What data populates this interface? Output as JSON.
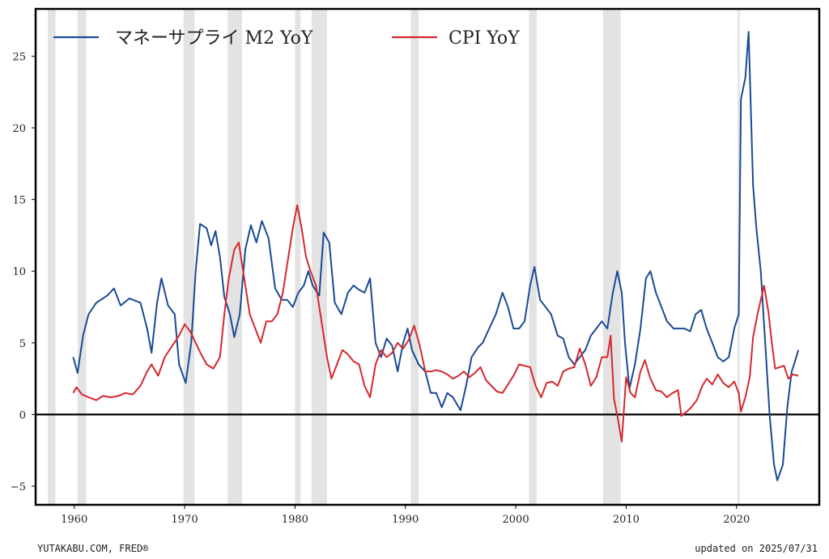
{
  "footer": {
    "source": "YUTAKABU.COM, FRED®",
    "updated": "updated on 2025/07/31"
  },
  "chart_data": {
    "type": "line",
    "title": "",
    "xlabel": "",
    "ylabel": "",
    "xlim": [
      1956.5,
      2027.5
    ],
    "ylim": [
      -6.3,
      28.3
    ],
    "x_ticks": [
      1960,
      1970,
      1980,
      1990,
      2000,
      2010,
      2020
    ],
    "y_ticks": [
      -5,
      0,
      5,
      10,
      15,
      20,
      25
    ],
    "y_tick_labels": [
      "−5",
      "0",
      "5",
      "10",
      "15",
      "20",
      "25"
    ],
    "grid": false,
    "zero_line": true,
    "legend_position": "top-left",
    "recessions": [
      [
        1957.6,
        1958.3
      ],
      [
        1960.3,
        1961.1
      ],
      [
        1969.9,
        1970.9
      ],
      [
        1973.9,
        1975.2
      ],
      [
        1980.0,
        1980.5
      ],
      [
        1981.5,
        1982.9
      ],
      [
        1990.5,
        1991.2
      ],
      [
        2001.2,
        2001.9
      ],
      [
        2007.9,
        2009.5
      ],
      [
        2020.1,
        2020.3
      ]
    ],
    "colors": {
      "recession": "#e3e3e3",
      "axis": "#000000"
    },
    "series": [
      {
        "name": "マネーサプライ M2 YoY",
        "color": "#1a4a94",
        "points": [
          [
            1959.9,
            4.0
          ],
          [
            1960.3,
            2.9
          ],
          [
            1960.8,
            5.5
          ],
          [
            1961.3,
            7.0
          ],
          [
            1962.0,
            7.8
          ],
          [
            1963.0,
            8.3
          ],
          [
            1963.6,
            8.8
          ],
          [
            1964.2,
            7.6
          ],
          [
            1965.0,
            8.1
          ],
          [
            1966.0,
            7.8
          ],
          [
            1966.6,
            6.0
          ],
          [
            1967.0,
            4.3
          ],
          [
            1967.5,
            7.8
          ],
          [
            1967.9,
            9.5
          ],
          [
            1968.5,
            7.6
          ],
          [
            1969.1,
            7.0
          ],
          [
            1969.5,
            3.5
          ],
          [
            1970.1,
            2.2
          ],
          [
            1970.6,
            5.0
          ],
          [
            1971.0,
            10.0
          ],
          [
            1971.4,
            13.3
          ],
          [
            1972.0,
            13.0
          ],
          [
            1972.4,
            11.8
          ],
          [
            1972.8,
            12.8
          ],
          [
            1973.2,
            11.0
          ],
          [
            1973.6,
            8.2
          ],
          [
            1974.1,
            7.0
          ],
          [
            1974.5,
            5.4
          ],
          [
            1975.0,
            7.0
          ],
          [
            1975.5,
            11.5
          ],
          [
            1976.0,
            13.2
          ],
          [
            1976.5,
            12.0
          ],
          [
            1977.0,
            13.5
          ],
          [
            1977.6,
            12.3
          ],
          [
            1978.2,
            8.8
          ],
          [
            1978.8,
            8.0
          ],
          [
            1979.3,
            8.0
          ],
          [
            1979.8,
            7.5
          ],
          [
            1980.3,
            8.5
          ],
          [
            1980.8,
            9.0
          ],
          [
            1981.2,
            10.0
          ],
          [
            1981.6,
            9.0
          ],
          [
            1982.2,
            8.3
          ],
          [
            1982.6,
            12.7
          ],
          [
            1983.1,
            12.0
          ],
          [
            1983.6,
            7.8
          ],
          [
            1984.2,
            7.0
          ],
          [
            1984.8,
            8.5
          ],
          [
            1985.3,
            9.0
          ],
          [
            1985.8,
            8.7
          ],
          [
            1986.3,
            8.5
          ],
          [
            1986.8,
            9.5
          ],
          [
            1987.3,
            5.0
          ],
          [
            1987.8,
            4.0
          ],
          [
            1988.3,
            5.3
          ],
          [
            1988.8,
            4.8
          ],
          [
            1989.3,
            3.0
          ],
          [
            1989.8,
            5.0
          ],
          [
            1990.2,
            6.0
          ],
          [
            1990.6,
            4.5
          ],
          [
            1991.2,
            3.5
          ],
          [
            1991.8,
            3.0
          ],
          [
            1992.3,
            1.5
          ],
          [
            1992.8,
            1.5
          ],
          [
            1993.3,
            0.5
          ],
          [
            1993.8,
            1.5
          ],
          [
            1994.3,
            1.2
          ],
          [
            1995.0,
            0.3
          ],
          [
            1995.5,
            2.0
          ],
          [
            1996.0,
            4.0
          ],
          [
            1996.6,
            4.7
          ],
          [
            1997.0,
            5.0
          ],
          [
            1997.6,
            6.0
          ],
          [
            1998.2,
            7.0
          ],
          [
            1998.8,
            8.5
          ],
          [
            1999.3,
            7.5
          ],
          [
            1999.8,
            6.0
          ],
          [
            2000.3,
            6.0
          ],
          [
            2000.8,
            6.5
          ],
          [
            2001.3,
            9.0
          ],
          [
            2001.7,
            10.3
          ],
          [
            2002.2,
            8.0
          ],
          [
            2002.7,
            7.5
          ],
          [
            2003.2,
            7.0
          ],
          [
            2003.8,
            5.5
          ],
          [
            2004.3,
            5.3
          ],
          [
            2004.8,
            4.0
          ],
          [
            2005.3,
            3.5
          ],
          [
            2005.8,
            4.0
          ],
          [
            2006.3,
            4.5
          ],
          [
            2006.8,
            5.5
          ],
          [
            2007.3,
            6.0
          ],
          [
            2007.8,
            6.5
          ],
          [
            2008.3,
            6.0
          ],
          [
            2008.8,
            8.5
          ],
          [
            2009.2,
            10.0
          ],
          [
            2009.6,
            8.5
          ],
          [
            2009.9,
            5.0
          ],
          [
            2010.3,
            1.8
          ],
          [
            2010.8,
            3.5
          ],
          [
            2011.3,
            6.0
          ],
          [
            2011.8,
            9.5
          ],
          [
            2012.2,
            10.0
          ],
          [
            2012.7,
            8.5
          ],
          [
            2013.2,
            7.5
          ],
          [
            2013.7,
            6.5
          ],
          [
            2014.3,
            6.0
          ],
          [
            2014.8,
            6.0
          ],
          [
            2015.3,
            6.0
          ],
          [
            2015.8,
            5.8
          ],
          [
            2016.3,
            7.0
          ],
          [
            2016.8,
            7.3
          ],
          [
            2017.3,
            6.0
          ],
          [
            2017.8,
            5.0
          ],
          [
            2018.3,
            4.0
          ],
          [
            2018.8,
            3.7
          ],
          [
            2019.3,
            4.0
          ],
          [
            2019.8,
            6.0
          ],
          [
            2020.2,
            7.0
          ],
          [
            2020.4,
            22.0
          ],
          [
            2020.8,
            23.5
          ],
          [
            2021.1,
            26.7
          ],
          [
            2021.5,
            16.0
          ],
          [
            2021.8,
            13.0
          ],
          [
            2022.2,
            10.0
          ],
          [
            2022.6,
            5.0
          ],
          [
            2023.0,
            0.0
          ],
          [
            2023.4,
            -3.5
          ],
          [
            2023.7,
            -4.6
          ],
          [
            2024.2,
            -3.5
          ],
          [
            2024.6,
            0.5
          ],
          [
            2025.0,
            3.0
          ],
          [
            2025.3,
            3.7
          ],
          [
            2025.6,
            4.5
          ]
        ]
      },
      {
        "name": "CPI YoY",
        "color": "#d4282d",
        "points": [
          [
            1959.9,
            1.5
          ],
          [
            1960.2,
            1.9
          ],
          [
            1960.7,
            1.4
          ],
          [
            1961.3,
            1.2
          ],
          [
            1962.0,
            1.0
          ],
          [
            1962.6,
            1.3
          ],
          [
            1963.3,
            1.2
          ],
          [
            1964.0,
            1.3
          ],
          [
            1964.6,
            1.5
          ],
          [
            1965.3,
            1.4
          ],
          [
            1966.0,
            2.0
          ],
          [
            1966.6,
            3.0
          ],
          [
            1967.0,
            3.5
          ],
          [
            1967.6,
            2.7
          ],
          [
            1968.2,
            4.0
          ],
          [
            1968.8,
            4.7
          ],
          [
            1969.5,
            5.5
          ],
          [
            1970.0,
            6.3
          ],
          [
            1970.5,
            5.8
          ],
          [
            1971.0,
            5.0
          ],
          [
            1971.5,
            4.2
          ],
          [
            1972.0,
            3.5
          ],
          [
            1972.6,
            3.2
          ],
          [
            1973.2,
            4.0
          ],
          [
            1973.6,
            7.0
          ],
          [
            1974.0,
            9.5
          ],
          [
            1974.5,
            11.5
          ],
          [
            1974.9,
            12.0
          ],
          [
            1975.4,
            9.5
          ],
          [
            1975.9,
            7.0
          ],
          [
            1976.4,
            6.0
          ],
          [
            1976.9,
            5.0
          ],
          [
            1977.4,
            6.5
          ],
          [
            1977.9,
            6.5
          ],
          [
            1978.4,
            7.0
          ],
          [
            1978.9,
            8.5
          ],
          [
            1979.4,
            11.0
          ],
          [
            1979.8,
            13.0
          ],
          [
            1980.2,
            14.6
          ],
          [
            1980.6,
            13.0
          ],
          [
            1981.0,
            11.0
          ],
          [
            1981.4,
            10.0
          ],
          [
            1981.9,
            9.0
          ],
          [
            1982.4,
            6.5
          ],
          [
            1982.9,
            4.0
          ],
          [
            1983.3,
            2.5
          ],
          [
            1983.8,
            3.5
          ],
          [
            1984.3,
            4.5
          ],
          [
            1984.8,
            4.2
          ],
          [
            1985.3,
            3.7
          ],
          [
            1985.8,
            3.5
          ],
          [
            1986.3,
            2.0
          ],
          [
            1986.8,
            1.2
          ],
          [
            1987.3,
            3.5
          ],
          [
            1987.8,
            4.5
          ],
          [
            1988.3,
            4.0
          ],
          [
            1988.8,
            4.3
          ],
          [
            1989.3,
            5.0
          ],
          [
            1989.8,
            4.6
          ],
          [
            1990.3,
            5.2
          ],
          [
            1990.8,
            6.2
          ],
          [
            1991.3,
            4.8
          ],
          [
            1991.8,
            3.0
          ],
          [
            1992.3,
            3.0
          ],
          [
            1992.8,
            3.1
          ],
          [
            1993.3,
            3.0
          ],
          [
            1993.8,
            2.8
          ],
          [
            1994.3,
            2.5
          ],
          [
            1994.8,
            2.7
          ],
          [
            1995.3,
            3.0
          ],
          [
            1995.8,
            2.6
          ],
          [
            1996.3,
            2.9
          ],
          [
            1996.8,
            3.3
          ],
          [
            1997.3,
            2.4
          ],
          [
            1997.8,
            2.0
          ],
          [
            1998.3,
            1.6
          ],
          [
            1998.8,
            1.5
          ],
          [
            1999.3,
            2.1
          ],
          [
            1999.8,
            2.7
          ],
          [
            2000.3,
            3.5
          ],
          [
            2000.8,
            3.4
          ],
          [
            2001.3,
            3.3
          ],
          [
            2001.8,
            2.0
          ],
          [
            2002.3,
            1.2
          ],
          [
            2002.8,
            2.2
          ],
          [
            2003.3,
            2.3
          ],
          [
            2003.8,
            2.0
          ],
          [
            2004.3,
            3.0
          ],
          [
            2004.8,
            3.2
          ],
          [
            2005.3,
            3.3
          ],
          [
            2005.8,
            4.6
          ],
          [
            2006.3,
            3.5
          ],
          [
            2006.8,
            2.0
          ],
          [
            2007.3,
            2.6
          ],
          [
            2007.8,
            4.0
          ],
          [
            2008.3,
            4.0
          ],
          [
            2008.6,
            5.5
          ],
          [
            2008.9,
            1.1
          ],
          [
            2009.3,
            -0.5
          ],
          [
            2009.6,
            -1.9
          ],
          [
            2010.0,
            2.6
          ],
          [
            2010.4,
            1.5
          ],
          [
            2010.8,
            1.2
          ],
          [
            2011.3,
            3.0
          ],
          [
            2011.7,
            3.8
          ],
          [
            2012.2,
            2.5
          ],
          [
            2012.7,
            1.7
          ],
          [
            2013.2,
            1.6
          ],
          [
            2013.7,
            1.2
          ],
          [
            2014.2,
            1.5
          ],
          [
            2014.7,
            1.7
          ],
          [
            2015.0,
            -0.1
          ],
          [
            2015.5,
            0.2
          ],
          [
            2015.9,
            0.5
          ],
          [
            2016.4,
            1.0
          ],
          [
            2016.9,
            2.0
          ],
          [
            2017.3,
            2.5
          ],
          [
            2017.8,
            2.1
          ],
          [
            2018.3,
            2.8
          ],
          [
            2018.8,
            2.2
          ],
          [
            2019.3,
            1.9
          ],
          [
            2019.8,
            2.3
          ],
          [
            2020.2,
            1.5
          ],
          [
            2020.4,
            0.2
          ],
          [
            2020.8,
            1.2
          ],
          [
            2021.2,
            2.6
          ],
          [
            2021.5,
            5.4
          ],
          [
            2021.9,
            7.0
          ],
          [
            2022.2,
            8.0
          ],
          [
            2022.5,
            9.0
          ],
          [
            2022.9,
            7.1
          ],
          [
            2023.2,
            5.0
          ],
          [
            2023.5,
            3.2
          ],
          [
            2023.9,
            3.3
          ],
          [
            2024.3,
            3.4
          ],
          [
            2024.7,
            2.5
          ],
          [
            2025.1,
            2.8
          ],
          [
            2025.6,
            2.7
          ]
        ]
      }
    ]
  }
}
